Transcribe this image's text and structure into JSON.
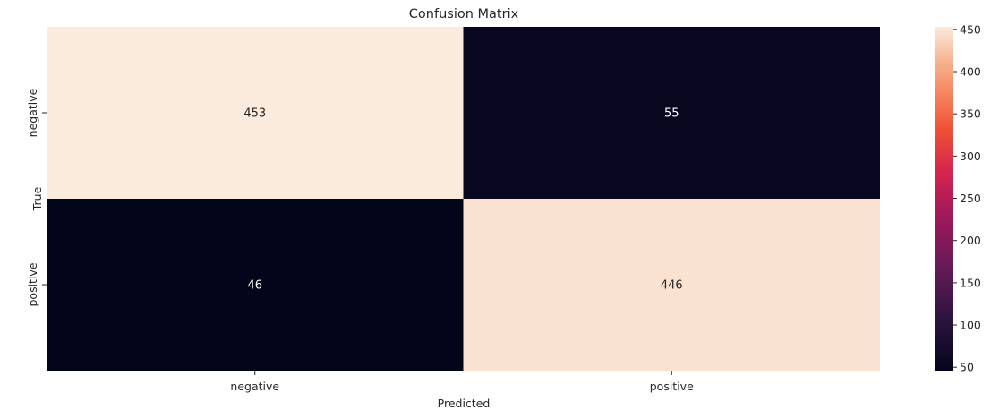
{
  "chart_data": {
    "type": "heatmap",
    "title": "Confusion Matrix",
    "xlabel": "Predicted",
    "ylabel": "True",
    "x_categories": [
      "negative",
      "positive"
    ],
    "y_categories": [
      "negative",
      "positive"
    ],
    "values": [
      [
        453,
        55
      ],
      [
        46,
        446
      ]
    ],
    "colorbar": {
      "range": [
        46,
        453
      ],
      "ticks": [
        50,
        100,
        150,
        200,
        250,
        300,
        350,
        400,
        450
      ],
      "colormap": "rocket"
    },
    "grid": false
  }
}
